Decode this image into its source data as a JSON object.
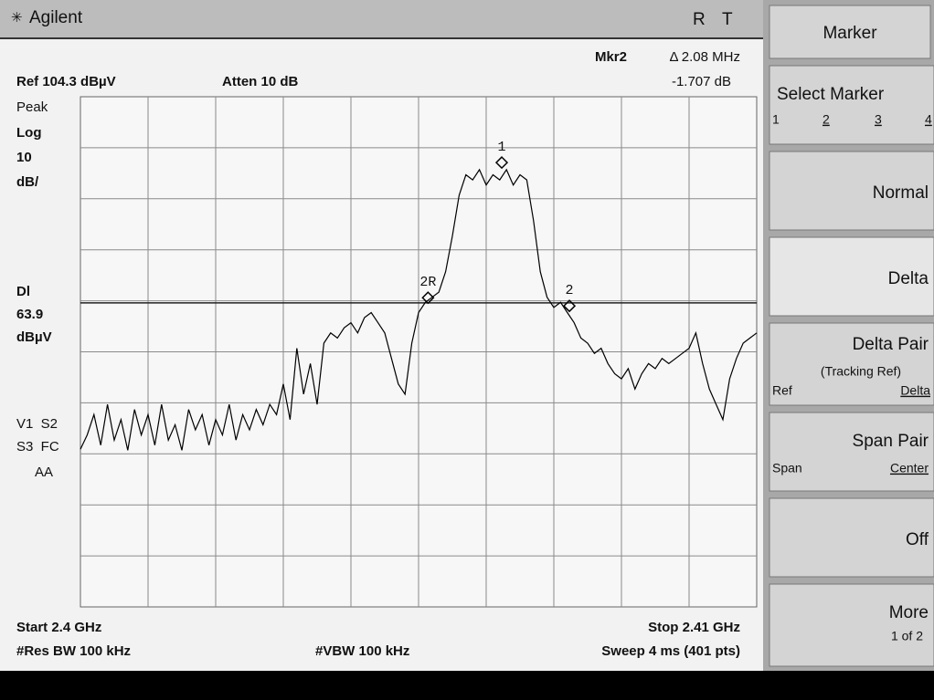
{
  "header": {
    "brand": "Agilent",
    "status_r": "R",
    "status_t": "T"
  },
  "readout": {
    "marker": "Mkr2",
    "delta": "Δ 2.08 MHz",
    "delta_level": "-1.707 dB"
  },
  "settings": {
    "ref": "Ref 104.3 dBµV",
    "atten": "Atten 10 dB",
    "left_labels": [
      "Peak",
      "Log",
      "10",
      "dB/",
      "Dl",
      "dBµV",
      "V1  S2",
      "S3  FC",
      "AA"
    ],
    "start": "Start 2.4 GHz",
    "stop": "Stop 2.41 GHz",
    "rbw": "#Res BW 100 kHz",
    "vbw": "#VBW 100 kHz",
    "sweep": "Sweep 4 ms (401 pts)"
  },
  "display_line": 63.9,
  "trace": {
    "ylim": [
      4.3,
      104.3
    ],
    "values": [
      35.2,
      38,
      42,
      36,
      44,
      37,
      41,
      35,
      43,
      38,
      42,
      36,
      44,
      37,
      40,
      35,
      43,
      39,
      42,
      36,
      41,
      38,
      44,
      37,
      42,
      39,
      43,
      40,
      44,
      42,
      48,
      41,
      55,
      46,
      52,
      44,
      56,
      58,
      57,
      59,
      60,
      58,
      61,
      62,
      60,
      58,
      53,
      48,
      46,
      56,
      62,
      64,
      65,
      66,
      70,
      77,
      85,
      89,
      88,
      90,
      87,
      89,
      88,
      90,
      87,
      89,
      88,
      80,
      70,
      65,
      63,
      64,
      62,
      60,
      57,
      56,
      54,
      55,
      52,
      50,
      49,
      51,
      47,
      50,
      52,
      51,
      53,
      52,
      53,
      54,
      55,
      58,
      52,
      47,
      44,
      41,
      49,
      53,
      56,
      57,
      58
    ]
  },
  "markers": [
    {
      "label": "1",
      "x": 62.3,
      "value": 91.4
    },
    {
      "label": "2R",
      "x": 51.4,
      "value": 64.9
    },
    {
      "label": "2",
      "x": 72.3,
      "value": 63.3
    }
  ],
  "softkeys": {
    "title": "Marker",
    "select": {
      "label": "Select Marker",
      "options": [
        "1",
        "2",
        "3",
        "4"
      ]
    },
    "normal": "Normal",
    "delta": "Delta",
    "delta_pair": {
      "label": "Delta Pair",
      "sub": "(Tracking Ref)",
      "left": "Ref",
      "right": "Delta"
    },
    "span_pair": {
      "label": "Span Pair",
      "left": "Span",
      "right": "Center"
    },
    "off": "Off",
    "more": {
      "label": "More",
      "sub": "1 of 2"
    }
  }
}
